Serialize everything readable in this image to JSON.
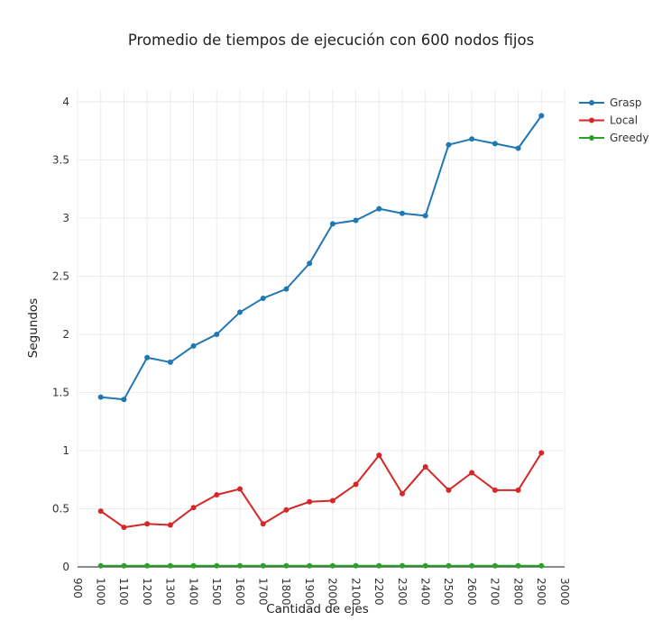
{
  "chart_data": {
    "type": "line",
    "title": "Promedio de tiempos de ejecución con 600 nodos fijos",
    "xlabel": "Cantidad de ejes",
    "ylabel": "Segundos",
    "xlim": [
      900,
      3000
    ],
    "ylim": [
      0,
      4.1
    ],
    "xticks": [
      900,
      1000,
      1100,
      1200,
      1300,
      1400,
      1500,
      1600,
      1700,
      1800,
      1900,
      2000,
      2100,
      2200,
      2300,
      2400,
      2500,
      2600,
      2700,
      2800,
      2900,
      3000
    ],
    "yticks": [
      0,
      0.5,
      1,
      1.5,
      2,
      2.5,
      3,
      3.5,
      4
    ],
    "ytick_labels": [
      "0",
      "0.5",
      "1",
      "1.5",
      "2",
      "2.5",
      "3",
      "3.5",
      "4"
    ],
    "grid": true,
    "legend_position": "top-right",
    "x": [
      1000,
      1100,
      1200,
      1300,
      1400,
      1500,
      1600,
      1700,
      1800,
      1900,
      2000,
      2100,
      2200,
      2300,
      2400,
      2500,
      2600,
      2700,
      2800,
      2900
    ],
    "series": [
      {
        "name": "Grasp",
        "color": "#1f77b4",
        "values": [
          1.46,
          1.44,
          1.8,
          1.76,
          1.9,
          2.0,
          2.19,
          2.31,
          2.39,
          2.61,
          2.95,
          2.98,
          3.08,
          3.04,
          3.02,
          3.63,
          3.68,
          3.64,
          3.6,
          3.88
        ]
      },
      {
        "name": "Local",
        "color": "#d62728",
        "values": [
          0.48,
          0.34,
          0.37,
          0.36,
          0.51,
          0.62,
          0.67,
          0.37,
          0.49,
          0.56,
          0.57,
          0.71,
          0.96,
          0.63,
          0.86,
          0.66,
          0.81,
          0.66,
          0.66,
          0.98
        ]
      },
      {
        "name": "Greedy",
        "color": "#2ca02c",
        "values": [
          0.01,
          0.01,
          0.01,
          0.01,
          0.01,
          0.01,
          0.01,
          0.01,
          0.01,
          0.01,
          0.01,
          0.01,
          0.01,
          0.01,
          0.01,
          0.01,
          0.01,
          0.01,
          0.01,
          0.01
        ]
      }
    ]
  }
}
